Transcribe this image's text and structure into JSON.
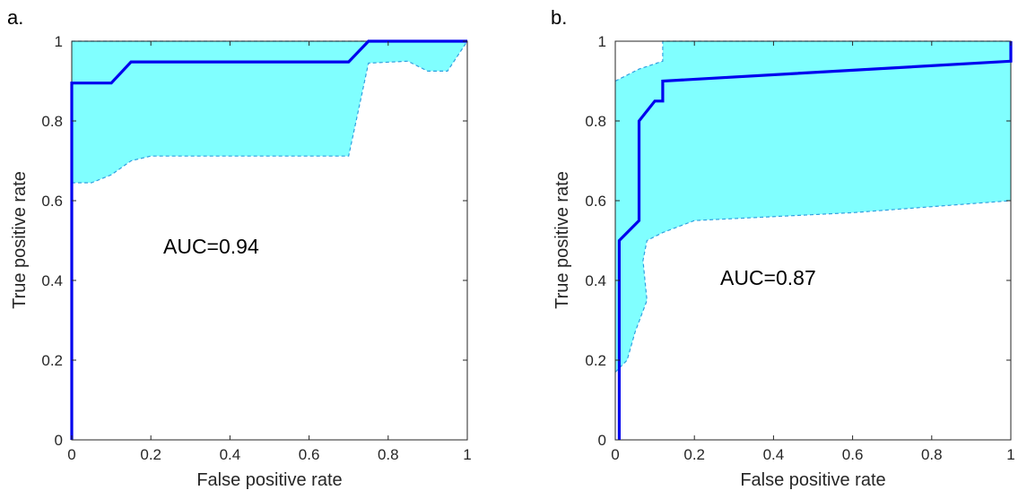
{
  "chart_data": [
    {
      "panel_label": "a.",
      "type": "line",
      "xlabel": "False positive rate",
      "ylabel": "True positive rate",
      "xlim": [
        0,
        1
      ],
      "ylim": [
        0,
        1
      ],
      "xticks": [
        "0",
        "0.2",
        "0.4",
        "0.6",
        "0.8",
        "1"
      ],
      "yticks": [
        "0",
        "0.2",
        "0.4",
        "0.6",
        "0.8",
        "1"
      ],
      "grid": false,
      "annotation": "AUC=0.94",
      "colors": {
        "roc": "#0000ee",
        "band": "#80ffff",
        "band_edge": "#2fa0e0"
      },
      "roc": [
        [
          0,
          0
        ],
        [
          0,
          0.895
        ],
        [
          0.1,
          0.895
        ],
        [
          0.15,
          0.948
        ],
        [
          0.7,
          0.948
        ],
        [
          0.75,
          1
        ],
        [
          1,
          1
        ]
      ],
      "band_upper": [
        [
          0,
          1
        ],
        [
          1,
          1
        ]
      ],
      "band_lower": [
        [
          0,
          0.645
        ],
        [
          0.05,
          0.645
        ],
        [
          0.1,
          0.665
        ],
        [
          0.15,
          0.7
        ],
        [
          0.2,
          0.712
        ],
        [
          0.7,
          0.712
        ],
        [
          0.75,
          0.945
        ],
        [
          0.85,
          0.95
        ],
        [
          0.9,
          0.925
        ],
        [
          0.95,
          0.925
        ],
        [
          1,
          1
        ]
      ]
    },
    {
      "panel_label": "b.",
      "type": "line",
      "xlabel": "False positive rate",
      "ylabel": "True positive rate",
      "xlim": [
        0,
        1
      ],
      "ylim": [
        0,
        1
      ],
      "xticks": [
        "0",
        "0.2",
        "0.4",
        "0.6",
        "0.8",
        "1"
      ],
      "yticks": [
        "0",
        "0.2",
        "0.4",
        "0.6",
        "0.8",
        "1"
      ],
      "grid": false,
      "annotation": "AUC=0.87",
      "colors": {
        "roc": "#0000ee",
        "band": "#80ffff",
        "band_edge": "#2fa0e0"
      },
      "roc": [
        [
          0.01,
          0
        ],
        [
          0.01,
          0.5
        ],
        [
          0.06,
          0.55
        ],
        [
          0.06,
          0.8
        ],
        [
          0.1,
          0.85
        ],
        [
          0.12,
          0.85
        ],
        [
          0.12,
          0.9
        ],
        [
          1,
          0.95
        ],
        [
          1,
          1
        ]
      ],
      "band_upper": [
        [
          0,
          0.9
        ],
        [
          0.06,
          0.93
        ],
        [
          0.12,
          0.95
        ],
        [
          0.12,
          1
        ],
        [
          1,
          1
        ]
      ],
      "band_lower": [
        [
          0,
          0.17
        ],
        [
          0.03,
          0.2
        ],
        [
          0.05,
          0.27
        ],
        [
          0.08,
          0.35
        ],
        [
          0.07,
          0.45
        ],
        [
          0.08,
          0.5
        ],
        [
          0.12,
          0.52
        ],
        [
          0.2,
          0.55
        ],
        [
          0.6,
          0.57
        ],
        [
          1,
          0.6
        ]
      ]
    }
  ]
}
